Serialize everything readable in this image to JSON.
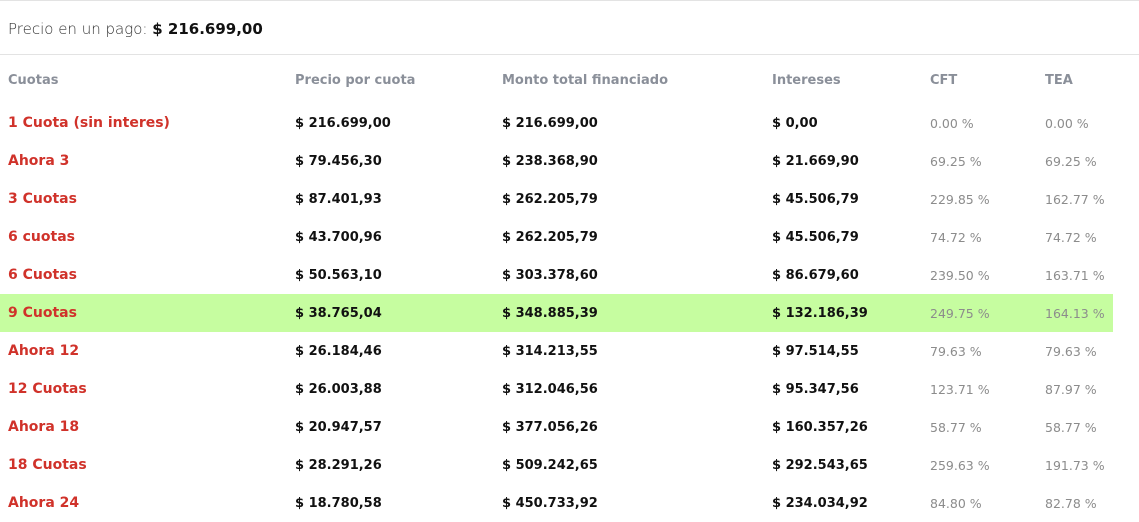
{
  "price": {
    "label": "Precio en un pago:",
    "value": "$ 216.699,00"
  },
  "columns": [
    "Cuotas",
    "Precio por cuota",
    "Monto total financiado",
    "Intereses",
    "CFT",
    "TEA"
  ],
  "rows": [
    {
      "name": "1 Cuota (sin interes)",
      "cuota": "$ 216.699,00",
      "total": "$ 216.699,00",
      "intereses": "$ 0,00",
      "cft": "0.00 %",
      "tea": "0.00 %"
    },
    {
      "name": "Ahora 3",
      "cuota": "$ 79.456,30",
      "total": "$ 238.368,90",
      "intereses": "$ 21.669,90",
      "cft": "69.25 %",
      "tea": "69.25 %"
    },
    {
      "name": "3 Cuotas",
      "cuota": "$ 87.401,93",
      "total": "$ 262.205,79",
      "intereses": "$ 45.506,79",
      "cft": "229.85 %",
      "tea": "162.77 %"
    },
    {
      "name": "6 cuotas",
      "cuota": "$ 43.700,96",
      "total": "$ 262.205,79",
      "intereses": "$ 45.506,79",
      "cft": "74.72 %",
      "tea": "74.72 %"
    },
    {
      "name": "6 Cuotas",
      "cuota": "$ 50.563,10",
      "total": "$ 303.378,60",
      "intereses": "$ 86.679,60",
      "cft": "239.50 %",
      "tea": "163.71 %"
    },
    {
      "name": "9 Cuotas",
      "cuota": "$ 38.765,04",
      "total": "$ 348.885,39",
      "intereses": "$ 132.186,39",
      "cft": "249.75 %",
      "tea": "164.13 %"
    },
    {
      "name": "Ahora 12",
      "cuota": "$ 26.184,46",
      "total": "$ 314.213,55",
      "intereses": "$ 97.514,55",
      "cft": "79.63 %",
      "tea": "79.63 %"
    },
    {
      "name": "12 Cuotas",
      "cuota": "$ 26.003,88",
      "total": "$ 312.046,56",
      "intereses": "$ 95.347,56",
      "cft": "123.71 %",
      "tea": "87.97 %"
    },
    {
      "name": "Ahora 18",
      "cuota": "$ 20.947,57",
      "total": "$ 377.056,26",
      "intereses": "$ 160.357,26",
      "cft": "58.77 %",
      "tea": "58.77 %"
    },
    {
      "name": "18 Cuotas",
      "cuota": "$ 28.291,26",
      "total": "$ 509.242,65",
      "intereses": "$ 292.543,65",
      "cft": "259.63 %",
      "tea": "191.73 %"
    },
    {
      "name": "Ahora 24",
      "cuota": "$ 18.780,58",
      "total": "$ 450.733,92",
      "intereses": "$ 234.034,92",
      "cft": "84.80 %",
      "tea": "82.78 %"
    }
  ],
  "highlight_color": "#c6fda0",
  "name_color": "#d0322a"
}
